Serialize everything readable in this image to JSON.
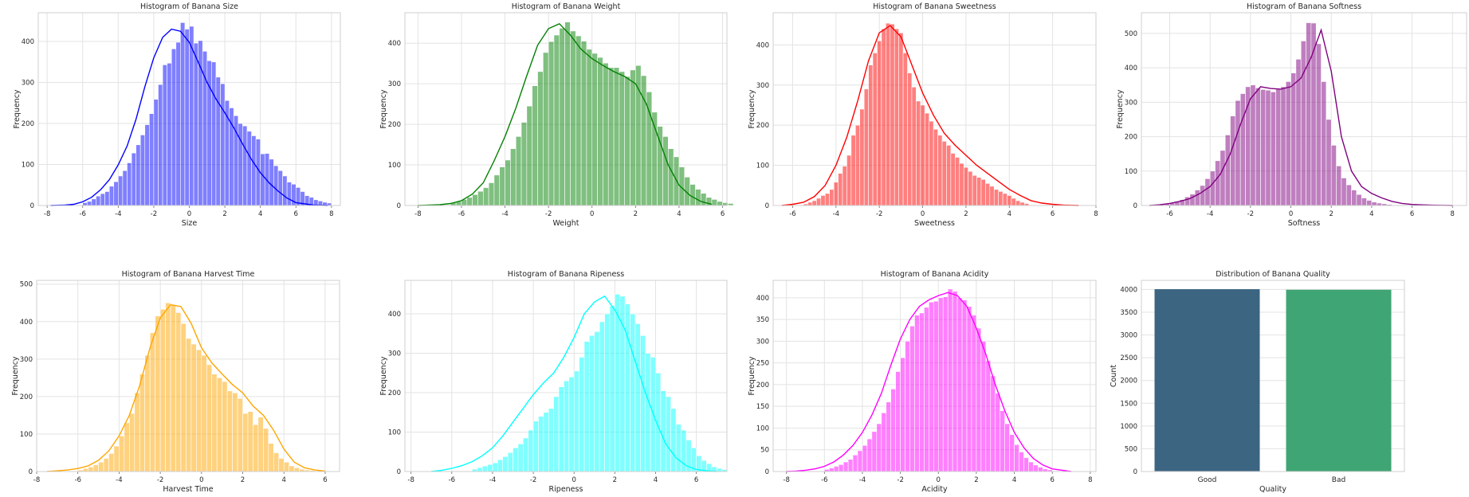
{
  "chart_data": [
    {
      "type": "histogram",
      "title": "Histogram of Banana Size",
      "xlabel": "Size",
      "ylabel": "Frequency",
      "color": "#0000ff",
      "bin_start": -6.0,
      "bin_width": 0.25,
      "values": [
        7,
        10,
        16,
        23,
        29,
        34,
        47,
        58,
        72,
        85,
        104,
        128,
        148,
        172,
        197,
        224,
        259,
        295,
        343,
        347,
        382,
        398,
        446,
        430,
        437,
        396,
        402,
        376,
        353,
        350,
        313,
        297,
        256,
        238,
        219,
        200,
        194,
        181,
        170,
        162,
        126,
        127,
        113,
        97,
        85,
        72,
        57,
        52,
        44,
        34,
        24,
        20,
        14,
        11,
        8,
        6
      ],
      "kde_x": [
        -7.8,
        -7.0,
        -6.5,
        -6.0,
        -5.5,
        -5.0,
        -4.5,
        -4.0,
        -3.5,
        -3.0,
        -2.5,
        -2.0,
        -1.5,
        -1.0,
        -0.5,
        0.0,
        0.5,
        1.0,
        1.5,
        2.0,
        2.5,
        3.0,
        3.5,
        4.0,
        4.5,
        5.0,
        5.5,
        6.0,
        7.0,
        7.8
      ],
      "kde_y": [
        0,
        1,
        3,
        9,
        20,
        38,
        63,
        99,
        145,
        210,
        290,
        360,
        410,
        430,
        425,
        398,
        350,
        300,
        260,
        226,
        190,
        150,
        112,
        80,
        55,
        35,
        18,
        7,
        1,
        0
      ],
      "xlim": [
        -8.5,
        8.5
      ],
      "ylim": [
        0,
        470
      ],
      "xticks": [
        -8,
        -6,
        -4,
        -2,
        0,
        2,
        4,
        6,
        8
      ],
      "yticks": [
        0,
        100,
        200,
        300,
        400
      ]
    },
    {
      "type": "histogram",
      "title": "Histogram of Banana Weight",
      "xlabel": "Weight",
      "ylabel": "Frequency",
      "color": "#008000",
      "bin_start": -6.5,
      "bin_width": 0.25,
      "values": [
        7,
        10,
        15,
        20,
        27,
        35,
        44,
        56,
        75,
        95,
        112,
        140,
        170,
        205,
        245,
        295,
        330,
        377,
        404,
        420,
        437,
        452,
        430,
        418,
        405,
        385,
        375,
        365,
        351,
        340,
        340,
        330,
        318,
        334,
        345,
        320,
        280,
        230,
        195,
        170,
        140,
        120,
        95,
        70,
        52,
        40,
        30,
        20,
        15,
        10,
        7,
        5
      ],
      "kde_x": [
        -8.0,
        -7.0,
        -6.5,
        -6.0,
        -5.5,
        -5.0,
        -4.5,
        -4.0,
        -3.5,
        -3.0,
        -2.5,
        -2.0,
        -1.5,
        -1.0,
        -0.5,
        0.0,
        0.5,
        1.0,
        1.5,
        2.0,
        2.5,
        3.0,
        3.5,
        4.0,
        4.5,
        5.0,
        5.5
      ],
      "kde_y": [
        0,
        2,
        5,
        12,
        28,
        56,
        110,
        170,
        240,
        320,
        395,
        436,
        448,
        420,
        385,
        362,
        345,
        330,
        318,
        300,
        250,
        175,
        100,
        50,
        25,
        10,
        3
      ],
      "xlim": [
        -8.6,
        6.2
      ],
      "ylim": [
        0,
        475
      ],
      "xticks": [
        -8,
        -6,
        -4,
        -2,
        0,
        2,
        4,
        6
      ],
      "yticks": [
        0,
        100,
        200,
        300,
        400
      ]
    },
    {
      "type": "histogram",
      "title": "Histogram of Banana Sweetness",
      "xlabel": "Sweetness",
      "ylabel": "Frequency",
      "color": "#ff0000",
      "bin_start": -5.5,
      "bin_width": 0.2,
      "values": [
        4,
        8,
        12,
        18,
        25,
        30,
        40,
        58,
        80,
        98,
        125,
        175,
        200,
        240,
        290,
        350,
        380,
        410,
        440,
        454,
        452,
        440,
        430,
        380,
        330,
        295,
        260,
        250,
        230,
        210,
        190,
        175,
        160,
        150,
        130,
        120,
        105,
        95,
        85,
        75,
        70,
        65,
        55,
        48,
        40,
        35,
        30,
        25,
        18,
        12,
        8,
        5
      ],
      "kde_x": [
        -6.5,
        -6.0,
        -5.5,
        -5.0,
        -4.5,
        -4.0,
        -3.5,
        -3.0,
        -2.5,
        -2.0,
        -1.5,
        -1.0,
        -0.5,
        0.0,
        0.5,
        1.0,
        1.5,
        2.0,
        2.5,
        3.0,
        3.5,
        4.0,
        4.5,
        5.0,
        5.5,
        6.0,
        6.5,
        7.2
      ],
      "kde_y": [
        0,
        3,
        8,
        22,
        50,
        100,
        170,
        260,
        360,
        430,
        448,
        420,
        350,
        280,
        225,
        180,
        150,
        125,
        100,
        80,
        60,
        40,
        25,
        12,
        6,
        3,
        1,
        0
      ],
      "xlim": [
        -6.9,
        8.0
      ],
      "ylim": [
        0,
        480
      ],
      "xticks": [
        -6,
        -4,
        -2,
        0,
        2,
        4,
        6,
        8
      ],
      "yticks": [
        0,
        100,
        200,
        300,
        400
      ]
    },
    {
      "type": "histogram",
      "title": "Histogram of Banana Softness",
      "xlabel": "Softness",
      "ylabel": "Frequency",
      "color": "#800080",
      "bin_start": -6.5,
      "bin_width": 0.25,
      "values": [
        3,
        5,
        8,
        12,
        17,
        25,
        33,
        45,
        58,
        78,
        100,
        130,
        160,
        205,
        260,
        305,
        325,
        345,
        350,
        342,
        337,
        335,
        330,
        338,
        345,
        360,
        385,
        425,
        478,
        531,
        530,
        470,
        360,
        250,
        175,
        115,
        80,
        60,
        45,
        32,
        22,
        15,
        10,
        7,
        5,
        3
      ],
      "kde_x": [
        -7.0,
        -6.5,
        -6.0,
        -5.5,
        -5.0,
        -4.5,
        -4.0,
        -3.5,
        -3.0,
        -2.5,
        -2.0,
        -1.5,
        -1.0,
        -0.5,
        0.0,
        0.5,
        1.0,
        1.5,
        2.0,
        2.5,
        3.0,
        3.5,
        4.0,
        4.5,
        5.0,
        5.5,
        6.0,
        7.0,
        8.0
      ],
      "kde_y": [
        0,
        2,
        6,
        12,
        20,
        35,
        55,
        90,
        150,
        235,
        310,
        345,
        340,
        338,
        345,
        370,
        430,
        510,
        390,
        200,
        100,
        55,
        35,
        22,
        12,
        6,
        3,
        1,
        0
      ],
      "xlim": [
        -7.4,
        8.7
      ],
      "ylim": [
        0,
        560
      ],
      "xticks": [
        -6,
        -4,
        -2,
        0,
        2,
        4,
        6,
        8
      ],
      "yticks": [
        0,
        100,
        200,
        300,
        400,
        500
      ]
    },
    {
      "type": "histogram",
      "title": "Histogram of Banana Harvest Time",
      "xlabel": "Harvest Time",
      "ylabel": "Frequency",
      "color": "#ffa500",
      "bin_start": -6.0,
      "bin_width": 0.25,
      "values": [
        4,
        8,
        12,
        18,
        25,
        35,
        48,
        68,
        95,
        130,
        155,
        210,
        260,
        310,
        370,
        415,
        433,
        450,
        445,
        424,
        395,
        355,
        340,
        325,
        310,
        285,
        260,
        250,
        240,
        215,
        210,
        195,
        155,
        160,
        125,
        145,
        115,
        75,
        50,
        35,
        25,
        15,
        10,
        6,
        4,
        3
      ],
      "kde_x": [
        -7.5,
        -7.0,
        -6.5,
        -6.0,
        -5.5,
        -5.0,
        -4.5,
        -4.0,
        -3.5,
        -3.0,
        -2.5,
        -2.0,
        -1.5,
        -1.0,
        -0.5,
        0.0,
        0.5,
        1.0,
        1.5,
        2.0,
        2.5,
        3.0,
        3.5,
        4.0,
        4.5,
        5.0,
        5.5,
        6.0
      ],
      "kde_y": [
        0,
        2,
        4,
        8,
        15,
        30,
        55,
        95,
        150,
        230,
        330,
        410,
        445,
        440,
        395,
        330,
        290,
        260,
        232,
        210,
        175,
        150,
        110,
        60,
        25,
        10,
        4,
        1
      ],
      "xlim": [
        -8.0,
        6.7
      ],
      "ylim": [
        0,
        510
      ],
      "xticks": [
        -8,
        -6,
        -4,
        -2,
        0,
        2,
        4,
        6
      ],
      "yticks": [
        0,
        100,
        200,
        300,
        400,
        500
      ]
    },
    {
      "type": "histogram",
      "title": "Histogram of Banana Ripeness",
      "xlabel": "Ripeness",
      "ylabel": "Frequency",
      "color": "#00ffff",
      "bin_start": -5.0,
      "bin_width": 0.25,
      "values": [
        6,
        10,
        14,
        18,
        22,
        30,
        38,
        48,
        60,
        70,
        85,
        105,
        128,
        140,
        150,
        160,
        190,
        215,
        230,
        240,
        255,
        290,
        330,
        345,
        355,
        380,
        400,
        420,
        450,
        445,
        425,
        400,
        375,
        345,
        300,
        290,
        250,
        205,
        190,
        160,
        120,
        105,
        80,
        60,
        40,
        28,
        20,
        12,
        8,
        5
      ],
      "kde_x": [
        -7.0,
        -6.5,
        -6.0,
        -5.5,
        -5.0,
        -4.5,
        -4.0,
        -3.5,
        -3.0,
        -2.5,
        -2.0,
        -1.5,
        -1.0,
        -0.5,
        0.0,
        0.5,
        1.0,
        1.5,
        2.0,
        2.5,
        3.0,
        3.5,
        4.0,
        4.5,
        5.0,
        5.5,
        6.0,
        6.5,
        7.0
      ],
      "kde_y": [
        0,
        3,
        8,
        15,
        25,
        40,
        60,
        90,
        125,
        160,
        195,
        225,
        250,
        290,
        340,
        400,
        430,
        445,
        410,
        360,
        280,
        200,
        130,
        70,
        35,
        15,
        5,
        2,
        0
      ],
      "xlim": [
        -8.3,
        7.5
      ],
      "ylim": [
        0,
        485
      ],
      "xticks": [
        -8,
        -6,
        -4,
        -2,
        0,
        2,
        4,
        6
      ],
      "yticks": [
        0,
        100,
        200,
        300,
        400
      ]
    },
    {
      "type": "histogram",
      "title": "Histogram of Banana Acidity",
      "xlabel": "Acidity",
      "ylabel": "Frequency",
      "color": "#ff00ff",
      "bin_start": -6.0,
      "bin_width": 0.25,
      "values": [
        5,
        8,
        12,
        16,
        22,
        28,
        38,
        48,
        60,
        75,
        92,
        110,
        135,
        160,
        190,
        230,
        262,
        300,
        335,
        360,
        365,
        378,
        390,
        392,
        400,
        402,
        420,
        415,
        400,
        395,
        380,
        360,
        330,
        300,
        255,
        220,
        180,
        140,
        110,
        85,
        62,
        45,
        32,
        22,
        15,
        10,
        6,
        4
      ],
      "kde_x": [
        -8.0,
        -7.5,
        -7.0,
        -6.5,
        -6.0,
        -5.5,
        -5.0,
        -4.5,
        -4.0,
        -3.5,
        -3.0,
        -2.5,
        -2.0,
        -1.5,
        -1.0,
        -0.5,
        0.0,
        0.5,
        1.0,
        1.5,
        2.0,
        2.5,
        3.0,
        3.5,
        4.0,
        4.5,
        5.0,
        5.5,
        6.0,
        7.0
      ],
      "kde_y": [
        0,
        1,
        3,
        6,
        12,
        22,
        38,
        60,
        90,
        130,
        180,
        245,
        305,
        350,
        380,
        395,
        405,
        412,
        405,
        380,
        330,
        270,
        200,
        140,
        90,
        55,
        30,
        15,
        6,
        0
      ],
      "xlim": [
        -8.7,
        8.3
      ],
      "ylim": [
        0,
        440
      ],
      "xticks": [
        -8,
        -6,
        -4,
        -2,
        0,
        2,
        4,
        6,
        8
      ],
      "yticks": [
        0,
        50,
        100,
        150,
        200,
        250,
        300,
        350,
        400
      ]
    },
    {
      "type": "bar",
      "title": "Distribution of Banana Quality",
      "xlabel": "Quality",
      "ylabel": "Count",
      "categories": [
        "Good",
        "Bad"
      ],
      "values": [
        4006,
        3994
      ],
      "colors": [
        "#3c6582",
        "#40a574"
      ],
      "ylim": [
        0,
        4200
      ],
      "yticks": [
        0,
        500,
        1000,
        1500,
        2000,
        2500,
        3000,
        3500,
        4000
      ]
    }
  ]
}
